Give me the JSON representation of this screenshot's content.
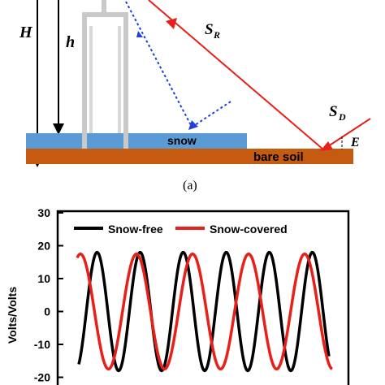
{
  "diagram": {
    "label_H": "H",
    "label_h": "h",
    "label_SR": "S",
    "label_SR_sub": "R",
    "label_SD": "S",
    "label_SD_sub": "D",
    "label_E": "E",
    "label_snow": "snow",
    "label_soil": "bare soil",
    "caption": "(a)",
    "colors": {
      "snow": "#5b9bd5",
      "soil": "#c55a11",
      "ray": "#e8201a",
      "reflected": "#1f3fd6",
      "antenna": "#c9c9c9"
    }
  },
  "chart_data": {
    "type": "line",
    "title": "",
    "xlabel": "",
    "ylabel": "Volts/Volts",
    "ylim": [
      -20,
      30
    ],
    "yticks": [
      "30",
      "20",
      "10",
      "0",
      "-10",
      "-20"
    ],
    "legend_position": "top",
    "series": [
      {
        "name": "Snow-free",
        "color": "#000000",
        "amplitude": 18,
        "cycles_visible": 6.2
      },
      {
        "name": "Snow-covered",
        "color": "#e8201a",
        "amplitude": 17.5,
        "cycles_visible": 4.6
      }
    ]
  }
}
